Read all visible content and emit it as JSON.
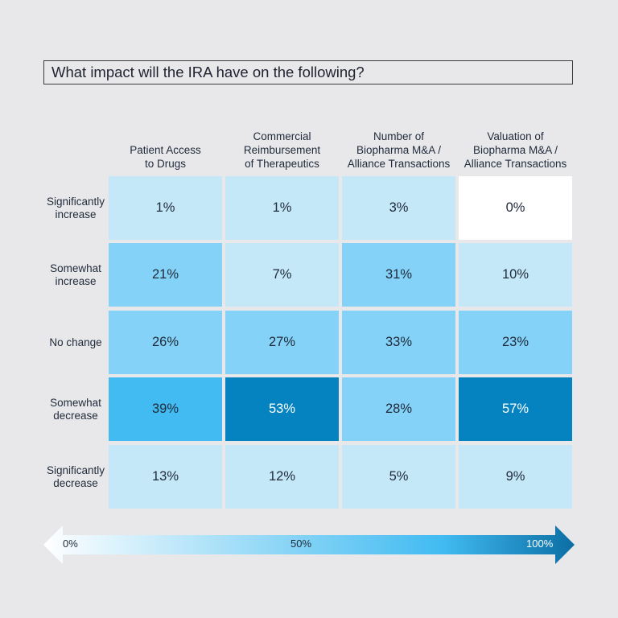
{
  "title": "What impact will the IRA have on the following?",
  "chart_data": {
    "type": "heatmap",
    "title": "What impact will the IRA have on the following?",
    "columns": [
      "Patient Access to Drugs",
      "Commercial Reimbursement of Therapeutics",
      "Number of Biopharma M&A / Alliance Transactions",
      "Valuation of Biopharma M&A / Alliance Transactions"
    ],
    "column_lines": [
      [
        "Patient Access",
        "to Drugs"
      ],
      [
        "Commercial",
        "Reimbursement",
        "of Therapeutics"
      ],
      [
        "Number of",
        "Biopharma M&A /",
        "Alliance Transactions"
      ],
      [
        "Valuation of",
        "Biopharma M&A /",
        "Alliance Transactions"
      ]
    ],
    "rows": [
      "Significantly increase",
      "Somewhat increase",
      "No change",
      "Somewhat decrease",
      "Significantly decrease"
    ],
    "row_lines": [
      [
        "Significantly",
        "increase"
      ],
      [
        "Somewhat",
        "increase"
      ],
      [
        "No change"
      ],
      [
        "Somewhat",
        "decrease"
      ],
      [
        "Significantly",
        "decrease"
      ]
    ],
    "values": [
      [
        1,
        1,
        3,
        0
      ],
      [
        21,
        7,
        31,
        10
      ],
      [
        26,
        27,
        33,
        23
      ],
      [
        39,
        53,
        28,
        57
      ],
      [
        13,
        12,
        5,
        9
      ]
    ],
    "unit": "%",
    "colors": {
      "white": "#ffffff",
      "pale": "#c5e8f9",
      "light": "#84d2f7",
      "medium": "#41bbf2",
      "dark": "#0583c1"
    },
    "legend": {
      "labels": [
        "0%",
        "50%",
        "100%"
      ],
      "gradient": [
        "#ffffff",
        "#7fd1f5",
        "#41bbf2",
        "#0b6ea3"
      ]
    }
  }
}
